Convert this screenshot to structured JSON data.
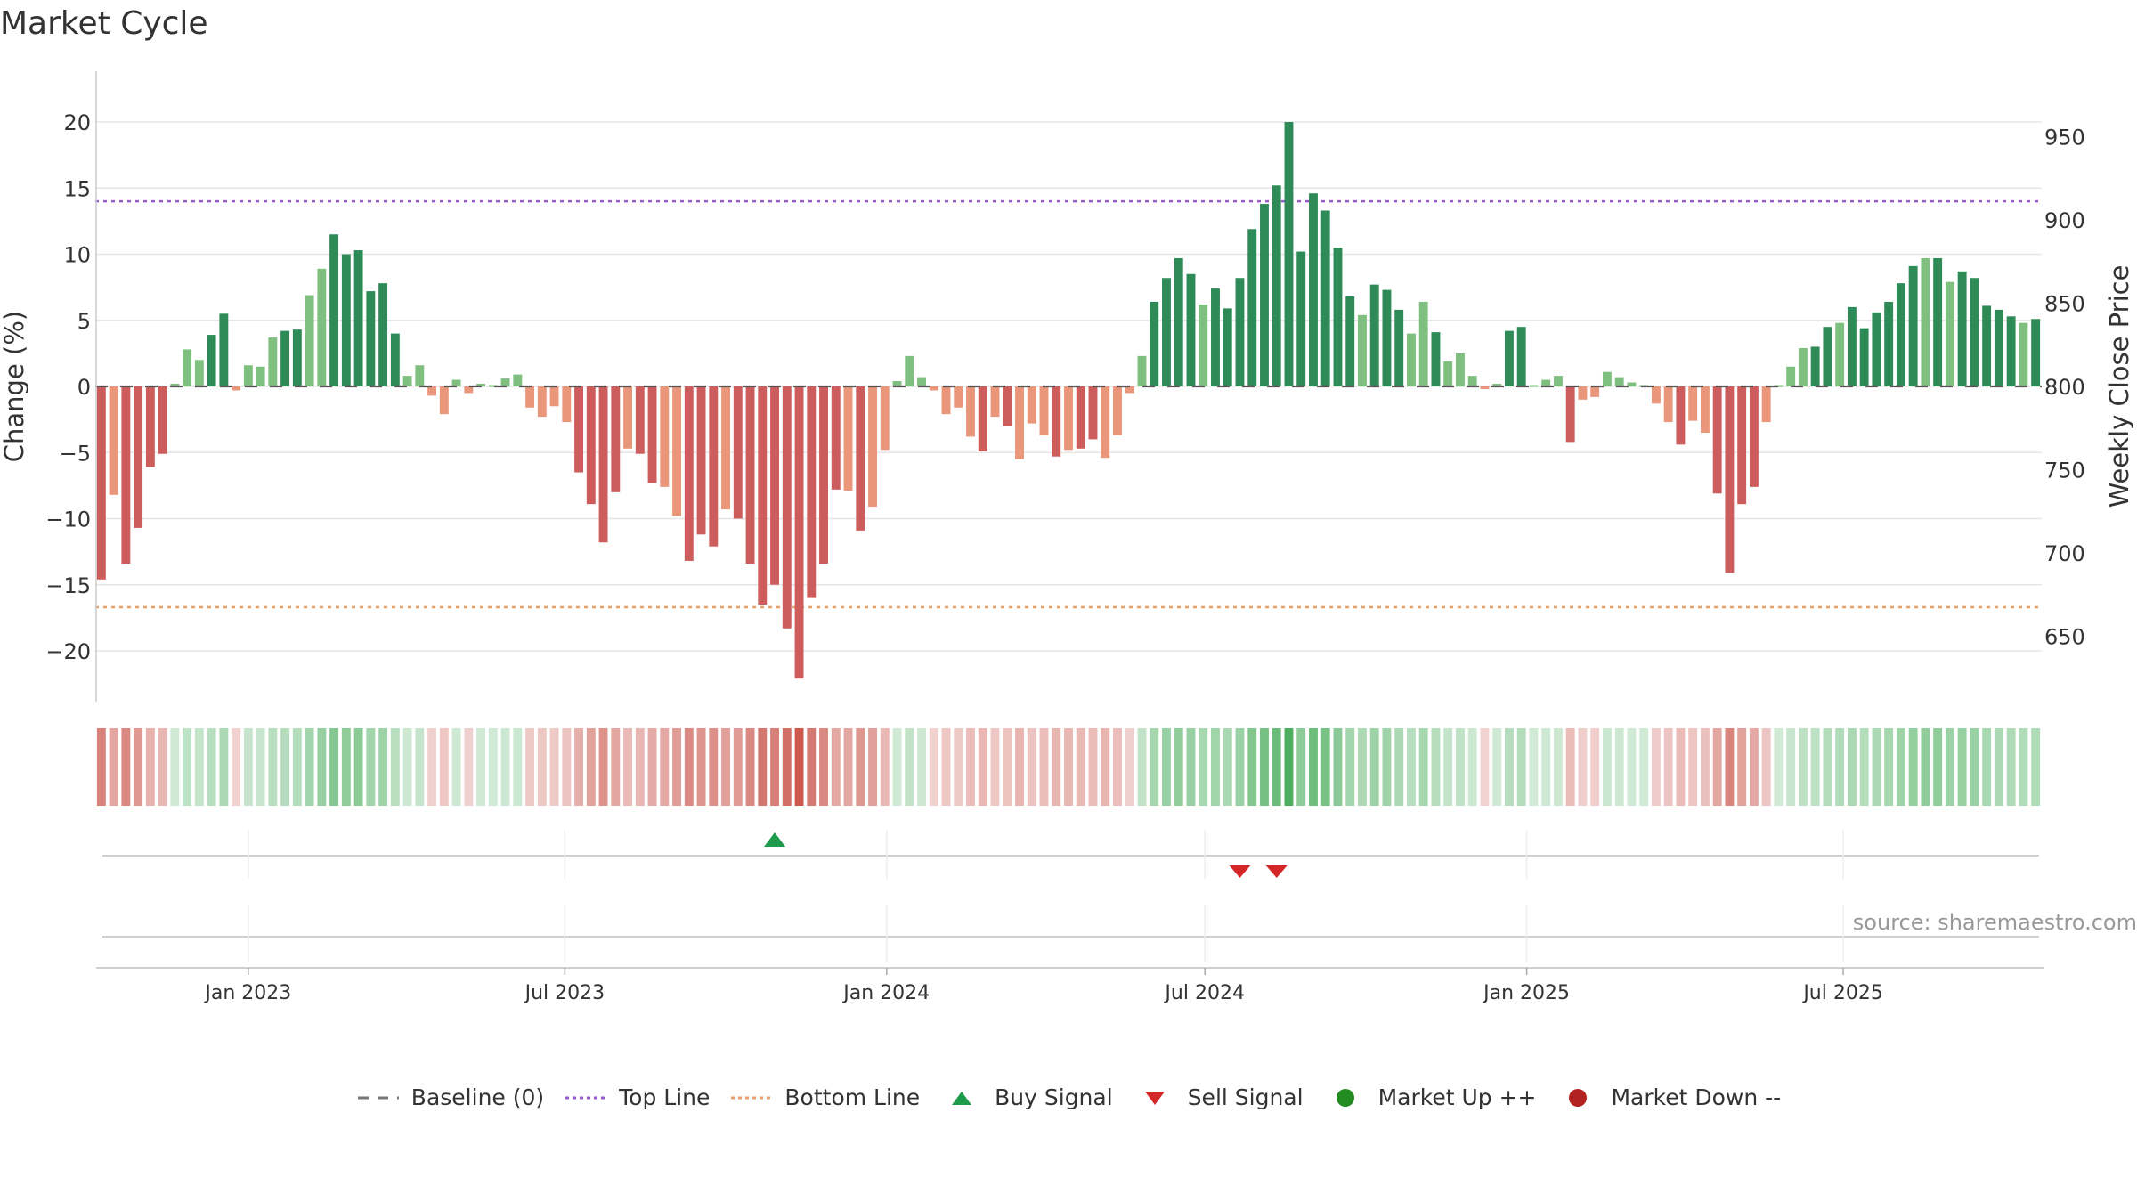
{
  "chart_data": {
    "type": "bar",
    "title": "Market Cycle",
    "ylabel_left": "Change (%)",
    "ylabel_right": "Weekly Close Price",
    "left_ticks": [
      20,
      15,
      10,
      5,
      0,
      -5,
      -10,
      -15,
      -20
    ],
    "left_tick_labels": [
      "20",
      "15",
      "10",
      "5",
      "0",
      "−5",
      "−10",
      "−15",
      "−20"
    ],
    "right_ticks": [
      950,
      900,
      850,
      800,
      750,
      700,
      650
    ],
    "right_tick_labels": [
      "950",
      "900",
      "850",
      "800",
      "750",
      "700",
      "650"
    ],
    "ylim": [
      -24,
      20
    ],
    "top_line": 14,
    "bottom_line": -16.7,
    "x_start": "2022-10-09",
    "week_step_days": 7,
    "x_tick_dates": [
      "2023-01-01",
      "2023-07-01",
      "2024-01-01",
      "2024-07-01",
      "2025-01-01",
      "2025-07-01"
    ],
    "x_tick_labels": [
      "Jan 2023",
      "Jul 2023",
      "Jan 2024",
      "Jul 2024",
      "Jan 2025",
      "Jul 2025"
    ],
    "grid": true,
    "legend_position": "bottom",
    "values": [
      -14.6,
      -8.2,
      -13.4,
      -10.7,
      -6.1,
      -5.1,
      0.2,
      2.8,
      2.0,
      3.9,
      5.5,
      -0.3,
      1.6,
      1.5,
      3.7,
      4.2,
      4.3,
      6.9,
      8.9,
      11.5,
      10.0,
      10.3,
      7.2,
      7.8,
      4.0,
      0.8,
      1.6,
      -0.7,
      -2.1,
      0.5,
      -0.5,
      0.2,
      0.1,
      0.6,
      0.9,
      -1.6,
      -2.3,
      -1.5,
      -2.7,
      -6.5,
      -8.9,
      -11.8,
      -8.0,
      -4.7,
      -5.1,
      -7.3,
      -7.6,
      -9.8,
      -13.2,
      -11.2,
      -12.1,
      -9.3,
      -10.0,
      -13.4,
      -16.5,
      -15.0,
      -18.3,
      -22.1,
      -16.0,
      -13.4,
      -7.8,
      -7.9,
      -10.9,
      -9.1,
      -4.8,
      0.4,
      2.3,
      0.7,
      -0.3,
      -2.1,
      -1.6,
      -3.8,
      -4.9,
      -2.3,
      -3.0,
      -5.5,
      -2.8,
      -3.7,
      -5.3,
      -4.8,
      -4.7,
      -4.0,
      -5.4,
      -3.7,
      -0.5,
      2.3,
      6.4,
      8.2,
      9.7,
      8.5,
      6.2,
      7.4,
      5.9,
      8.2,
      11.9,
      13.8,
      15.2,
      20.0,
      10.2,
      14.6,
      13.3,
      10.5,
      6.8,
      5.4,
      7.7,
      7.3,
      5.8,
      4.0,
      6.4,
      4.1,
      1.9,
      2.5,
      0.8,
      -0.2,
      0.2,
      4.2,
      4.5,
      0.1,
      0.5,
      0.8,
      -4.2,
      -1.0,
      -0.8,
      1.1,
      0.7,
      0.3,
      0.1,
      -1.3,
      -2.7,
      -4.4,
      -2.6,
      -3.5,
      -8.1,
      -14.1,
      -8.9,
      -7.6,
      -2.7,
      0.1,
      1.5,
      2.9,
      3.0,
      4.5,
      4.8,
      6.0,
      4.4,
      5.6,
      6.4,
      7.8,
      9.1,
      9.7,
      9.7,
      7.9,
      8.7,
      8.2,
      6.1,
      5.8,
      5.3,
      4.8,
      5.1
    ],
    "buy_signals": [
      "2023-10-29"
    ],
    "sell_signals": [
      "2024-07-21",
      "2024-08-11"
    ]
  },
  "annotations": {
    "source": "source: sharemaestro.com"
  },
  "legend": {
    "items": [
      {
        "label": "Baseline (0)",
        "marker": "dash-line",
        "color": "#777777"
      },
      {
        "label": "Top Line",
        "marker": "dotted-line",
        "color": "#9b59d0"
      },
      {
        "label": "Bottom Line",
        "marker": "dotted-line",
        "color": "#e8a06a"
      },
      {
        "label": "Buy Signal",
        "marker": "triangle-up",
        "color": "#1e9a4c"
      },
      {
        "label": "Sell Signal",
        "marker": "triangle-down",
        "color": "#d62728"
      },
      {
        "label": "Market Up ++",
        "marker": "circle",
        "color": "#228b22"
      },
      {
        "label": "Market Down --",
        "marker": "circle",
        "color": "#b22222"
      }
    ]
  },
  "colors": {
    "up_dark": "#2e8b57",
    "up_light": "#7fbf7f",
    "down_dark": "#cd5c5c",
    "down_light": "#e9967a",
    "grid": "#e6e6e6",
    "axis": "#cccccc"
  }
}
